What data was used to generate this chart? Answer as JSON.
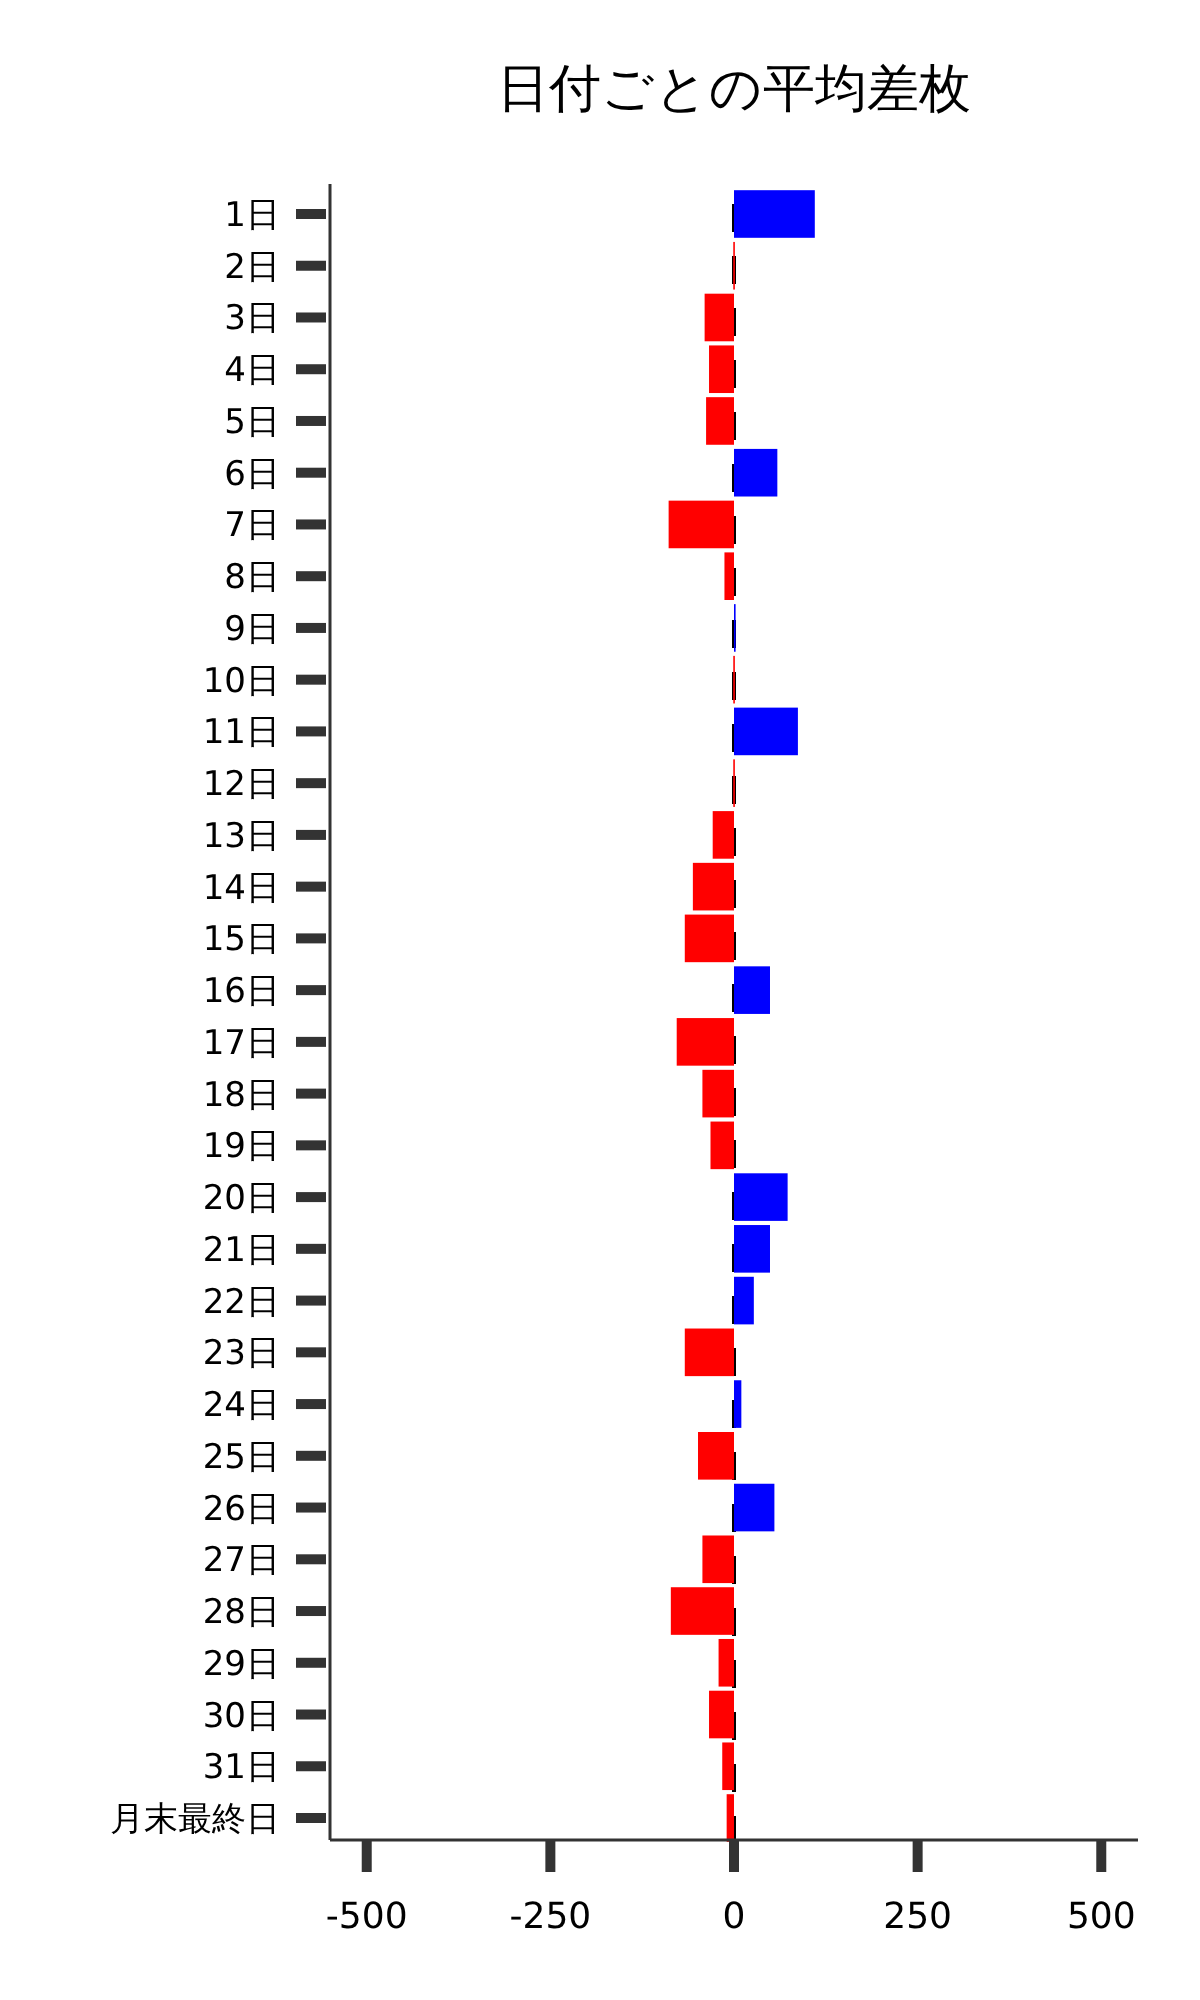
{
  "chart_data": {
    "type": "bar",
    "orientation": "horizontal",
    "title": "日付ごとの平均差枚",
    "categories": [
      "1日",
      "2日",
      "3日",
      "4日",
      "5日",
      "6日",
      "7日",
      "8日",
      "9日",
      "10日",
      "11日",
      "12日",
      "13日",
      "14日",
      "15日",
      "16日",
      "17日",
      "18日",
      "19日",
      "20日",
      "21日",
      "22日",
      "23日",
      "24日",
      "25日",
      "26日",
      "27日",
      "28日",
      "29日",
      "30日",
      "31日",
      "月末最終日"
    ],
    "values": [
      110,
      -1,
      -40,
      -34,
      -38,
      59,
      -89,
      -13,
      2,
      -1,
      87,
      -1,
      -29,
      -56,
      -67,
      49,
      -78,
      -43,
      -32,
      73,
      49,
      27,
      -67,
      10,
      -49,
      55,
      -43,
      -86,
      -21,
      -34,
      -16,
      -10
    ],
    "colors": [
      "#0000ff",
      "#ff0000",
      "#ff0000",
      "#ff0000",
      "#ff0000",
      "#0000ff",
      "#ff0000",
      "#ff0000",
      "#0000ff",
      "#ff0000",
      "#0000ff",
      "#ff0000",
      "#ff0000",
      "#ff0000",
      "#ff0000",
      "#0000ff",
      "#ff0000",
      "#ff0000",
      "#ff0000",
      "#0000ff",
      "#0000ff",
      "#0000ff",
      "#ff0000",
      "#0000ff",
      "#ff0000",
      "#0000ff",
      "#ff0000",
      "#ff0000",
      "#ff0000",
      "#ff0000",
      "#ff0000",
      "#ff0000"
    ],
    "xlim": [
      -550,
      550
    ],
    "xticks": [
      -500,
      -250,
      0,
      250,
      500
    ],
    "ref_lines": [
      {
        "axis": "x",
        "value": 0,
        "color": "#000000",
        "line_style": "dashed"
      }
    ],
    "grid": false
  }
}
